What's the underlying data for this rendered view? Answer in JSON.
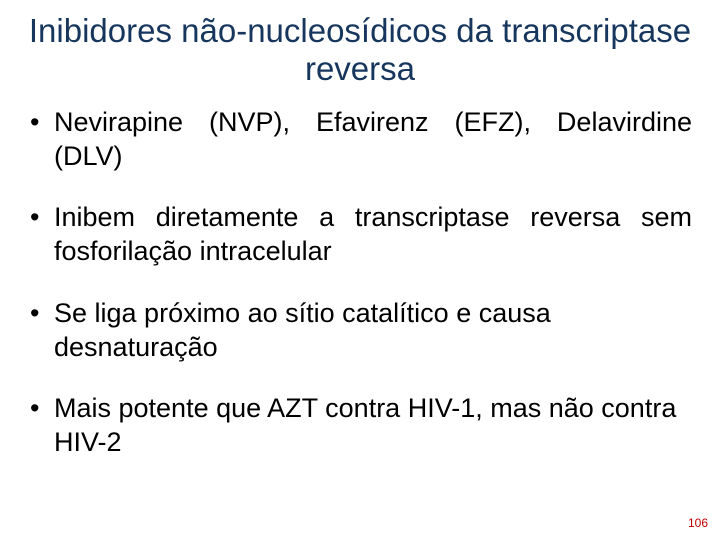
{
  "title": {
    "text": "Inibidores não-nucleosídicos da transcriptase reversa",
    "color": "#17365d",
    "fontsize": 33,
    "fontweight": "400"
  },
  "bullets": {
    "items": [
      {
        "text": "Nevirapine (NVP), Efavirenz (EFZ), Delavirdine (DLV)",
        "justified": true
      },
      {
        "text": "Inibem diretamente a transcriptase reversa sem fosforilação intracelular",
        "justified": true
      },
      {
        "text": "Se liga próximo ao sítio catalítico e causa desnaturação",
        "justified": false
      },
      {
        "text": "Mais potente que AZT contra HIV-1, mas não contra HIV-2",
        "justified": false
      }
    ],
    "color": "#000000",
    "fontsize": 27,
    "fontweight": "400",
    "bullet_color": "#000000"
  },
  "pagenum": {
    "text": "106",
    "color": "#c00000",
    "fontsize": 12
  },
  "background_color": "#ffffff"
}
